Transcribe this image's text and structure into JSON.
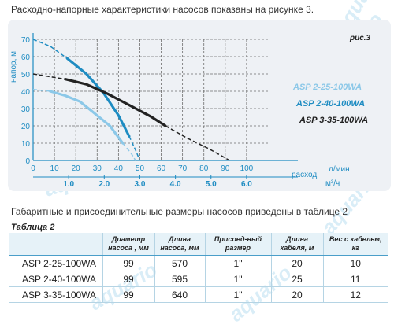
{
  "intro_text": "Расходно-напорные характеристики насосов показаны на рисунке 3.",
  "figure_label": "рис.3",
  "watermark_text": "aquario",
  "chart_data": {
    "type": "line",
    "ylabel": "напор, м",
    "xlabel": "расход",
    "x_unit_top": "л/мин",
    "x_unit_bottom": "м³/ч",
    "xlim": [
      0,
      110
    ],
    "ylim": [
      0,
      70
    ],
    "x_ticks": [
      0,
      10,
      20,
      30,
      40,
      50,
      60,
      70,
      80,
      90,
      100
    ],
    "y_ticks": [
      0,
      10,
      20,
      30,
      40,
      50,
      60,
      70
    ],
    "x2_ticks": [
      "1.0",
      "2.0",
      "3.0",
      "4.0",
      "5.0",
      "6.0"
    ],
    "x2_values_lmin": [
      16.67,
      33.33,
      50,
      66.67,
      83.33,
      100
    ],
    "grid": true,
    "series": [
      {
        "name": "ASP 2-25-100WA",
        "color": "#8cc8e8",
        "points": [
          [
            8,
            40
          ],
          [
            15,
            37.5
          ],
          [
            22,
            34
          ],
          [
            28,
            28
          ],
          [
            36,
            20
          ],
          [
            42,
            10
          ]
        ],
        "dashed_points": [
          [
            0,
            41
          ],
          [
            8,
            40
          ]
        ],
        "dashed_tail": [
          [
            42,
            10
          ],
          [
            46,
            4
          ],
          [
            48,
            0
          ]
        ]
      },
      {
        "name": "ASP 2-40-100WA",
        "color": "#1e8cc2",
        "points": [
          [
            16,
            59
          ],
          [
            25,
            50
          ],
          [
            33,
            39
          ],
          [
            40,
            26
          ],
          [
            45,
            14
          ]
        ],
        "dashed_points": [
          [
            0,
            70
          ],
          [
            8,
            66
          ],
          [
            16,
            59
          ]
        ],
        "dashed_tail": [
          [
            45,
            14
          ],
          [
            48,
            6
          ],
          [
            50,
            0
          ]
        ]
      },
      {
        "name": "ASP 3-35-100WA",
        "color": "#222222",
        "points": [
          [
            15,
            47
          ],
          [
            25,
            44
          ],
          [
            35,
            38.5
          ],
          [
            45,
            32
          ],
          [
            55,
            25.5
          ],
          [
            62,
            20
          ]
        ],
        "dashed_points": [
          [
            0,
            50
          ],
          [
            15,
            47
          ]
        ],
        "dashed_tail": [
          [
            62,
            20
          ],
          [
            72,
            13
          ],
          [
            82,
            7
          ],
          [
            90,
            1.5
          ],
          [
            92,
            0
          ]
        ]
      }
    ]
  },
  "mid_text": "Габаритные и присоединительные размеры насосов приведены в таблице 2",
  "table": {
    "title": "Таблица 2",
    "headers": [
      "",
      "Диаметр насоса , мм",
      "Длина насоса, мм",
      "Присоед-ный размер",
      "Длина кабеля, м",
      "Вес с кабелем, кг"
    ],
    "rows": [
      [
        "ASP 2-25-100WA",
        "99",
        "570",
        "1\"",
        "20",
        "10"
      ],
      [
        "ASP 2-40-100WA",
        "99",
        "595",
        "1\"",
        "25",
        "11"
      ],
      [
        "ASP 3-35-100WA",
        "99",
        "640",
        "1\"",
        "20",
        "12"
      ]
    ]
  }
}
